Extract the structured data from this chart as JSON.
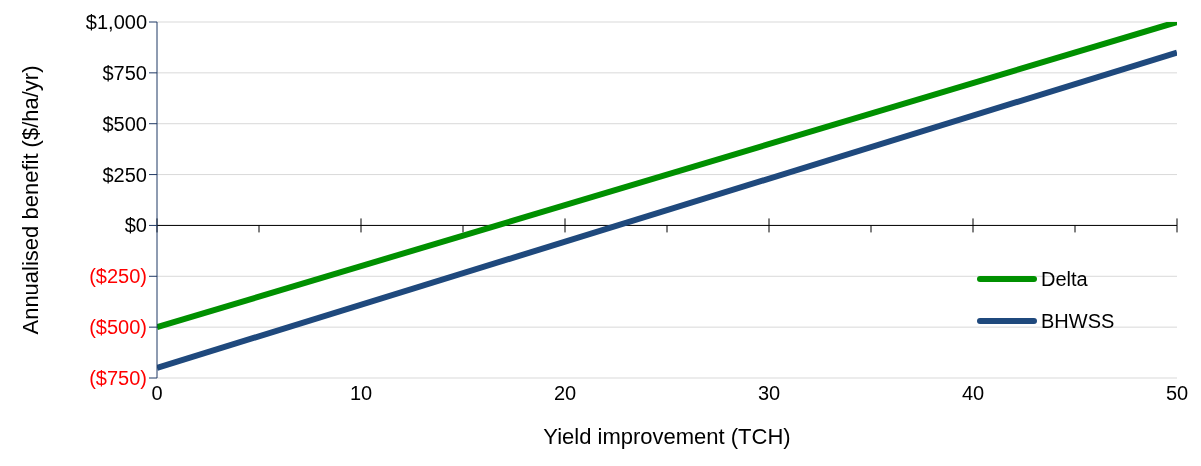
{
  "chart_data": {
    "type": "line",
    "xlabel": "Yield improvement (TCH)",
    "ylabel": "Annualised benefit ($/ha/yr)",
    "x": [
      0,
      50
    ],
    "series": [
      {
        "name": "Delta",
        "color": "#009000",
        "values": [
          -500,
          1000
        ]
      },
      {
        "name": "BHWSS",
        "color": "#1f497d",
        "values": [
          -700,
          850
        ]
      }
    ],
    "xlim": [
      0,
      50
    ],
    "xticks": [
      0,
      {
        "value": 5,
        "label": null
      },
      10,
      {
        "value": 15,
        "label": null
      },
      20,
      {
        "value": 25,
        "label": null
      },
      30,
      {
        "value": 35,
        "label": null
      },
      40,
      {
        "value": 45,
        "label": null
      },
      50
    ],
    "ylim": [
      -750,
      1000
    ],
    "yticks": [
      {
        "value": -750,
        "label": "($750)"
      },
      {
        "value": -500,
        "label": "($500)"
      },
      {
        "value": -250,
        "label": "($250)"
      },
      {
        "value": 0,
        "label": "$0"
      },
      {
        "value": 250,
        "label": "$250"
      },
      {
        "value": 500,
        "label": "$500"
      },
      {
        "value": 750,
        "label": "$750"
      },
      {
        "value": 1000,
        "label": "$1,000"
      }
    ],
    "grid": "y",
    "legend": "bottom right",
    "marker": "none",
    "line_style": "solid"
  }
}
